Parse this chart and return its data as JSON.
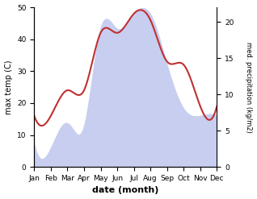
{
  "months": [
    "Jan",
    "Feb",
    "Mar",
    "Apr",
    "May",
    "Jun",
    "Jul",
    "Aug",
    "Sep",
    "Oct",
    "Nov",
    "Dec"
  ],
  "max_temp": [
    16,
    16,
    24,
    24,
    42,
    42,
    48,
    46,
    33,
    32,
    19,
    19
  ],
  "precipitation": [
    3,
    2.5,
    6,
    5.5,
    19,
    19,
    21,
    21,
    14,
    8,
    7,
    7
  ],
  "temp_color": "#c03030",
  "precip_fill_color": "#c8cef0",
  "temp_ylim": [
    0,
    50
  ],
  "precip_ylim": [
    0,
    22
  ],
  "precip_right_ticks": [
    0,
    5,
    10,
    15,
    20
  ],
  "temp_left_ticks": [
    0,
    10,
    20,
    30,
    40,
    50
  ],
  "xlabel": "date (month)",
  "ylabel_left": "max temp (C)",
  "ylabel_right": "med. precipitation (kg/m2)",
  "fig_width": 3.18,
  "fig_height": 2.47,
  "dpi": 100
}
